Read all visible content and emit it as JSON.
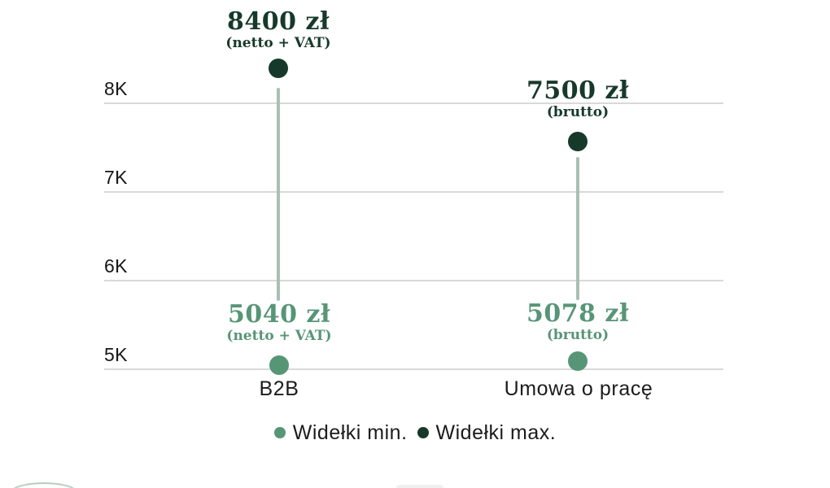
{
  "chart_data": {
    "type": "dumbbell",
    "title": "",
    "xlabel": "",
    "ylabel": "",
    "categories": [
      "B2B",
      "Umowa o pracę"
    ],
    "series": [
      {
        "name": "Widełki min.",
        "color": "#579577",
        "values": [
          5040,
          5078
        ],
        "labels": [
          "5040 zł",
          "5078 zł"
        ],
        "notes": [
          "(netto + VAT)",
          "(brutto)"
        ]
      },
      {
        "name": "Widełki max.",
        "color": "#17392b",
        "values": [
          8400,
          7500
        ],
        "labels": [
          "8400 zł",
          "7500 zł"
        ],
        "notes": [
          "(netto + VAT)",
          "(brutto)"
        ]
      }
    ],
    "yticks": [
      "5K",
      "6K",
      "7K",
      "8K"
    ],
    "ylim": [
      4800,
      8700
    ],
    "grid": true,
    "legend_position": "bottom",
    "colors": {
      "grid": "#d9d9d9",
      "stem": "#a9c0b4",
      "axis_text": "#161616",
      "category_text": "#1c1c1c",
      "min_accent": "#579577",
      "max_accent": "#17392b"
    }
  }
}
